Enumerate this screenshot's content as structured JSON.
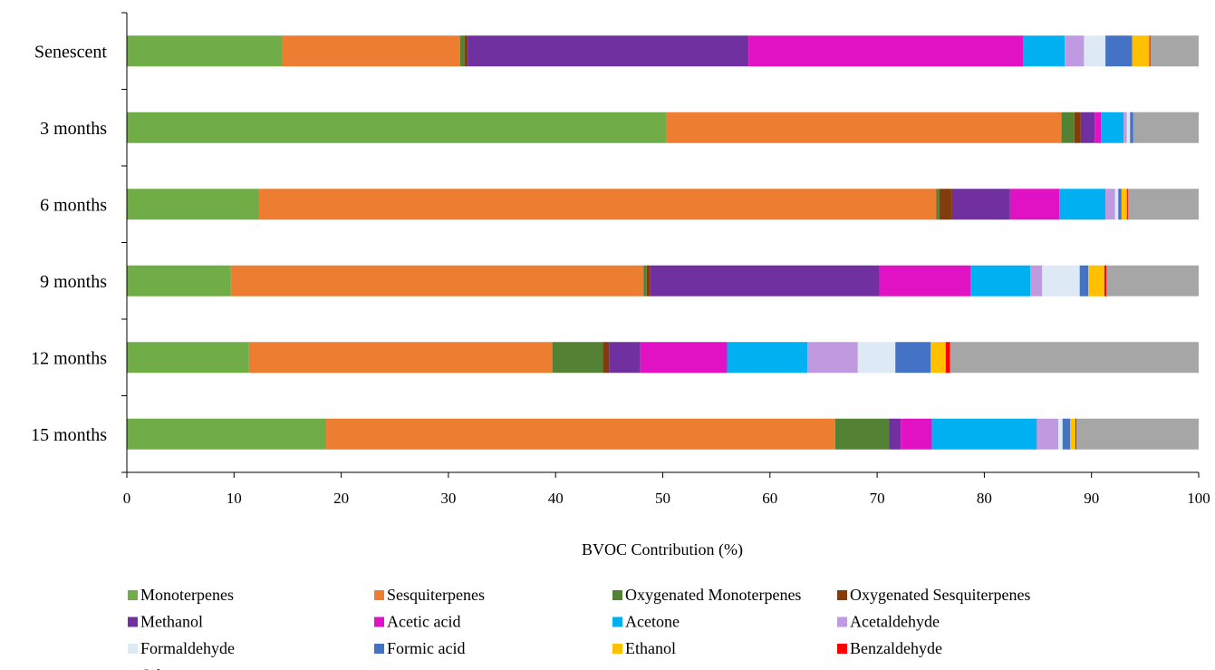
{
  "chart_data": {
    "type": "bar",
    "orientation": "horizontal",
    "stacked": true,
    "xlabel": "BVOC Contribution (%)",
    "xlim": [
      0,
      100
    ],
    "xticks": [
      "0",
      "10",
      "20",
      "30",
      "40",
      "50",
      "60",
      "70",
      "80",
      "90",
      "100"
    ],
    "grid": false,
    "legend_position": "bottom",
    "categories": [
      "Senescent",
      "3 months",
      "6 months",
      "9 months",
      "12 months",
      "15 months"
    ],
    "series": [
      {
        "name": "Monoterpenes",
        "color": "#70ad47",
        "values": [
          14.5,
          50.3,
          12.3,
          9.7,
          11.4,
          18.6
        ]
      },
      {
        "name": "Sesquiterpenes",
        "color": "#ed7d31",
        "values": [
          16.6,
          36.9,
          63.2,
          38.5,
          28.3,
          47.5
        ]
      },
      {
        "name": "Oxygenated Monoterpenes",
        "color": "#548235",
        "values": [
          0.4,
          1.2,
          0.3,
          0.3,
          4.7,
          5.0
        ]
      },
      {
        "name": "Oxygenated Sesquiterpenes",
        "color": "#843c0c",
        "values": [
          0.3,
          0.6,
          1.2,
          0.3,
          0.6,
          0.0
        ]
      },
      {
        "name": "Methanol",
        "color": "#7030a0",
        "values": [
          26.2,
          1.3,
          5.4,
          21.4,
          2.9,
          1.1
        ]
      },
      {
        "name": "Acetic acid",
        "color": "#e012c3",
        "values": [
          25.6,
          0.6,
          4.6,
          8.5,
          8.1,
          2.9
        ]
      },
      {
        "name": "Acetone",
        "color": "#00b0f0",
        "values": [
          3.9,
          2.1,
          4.3,
          5.6,
          7.5,
          9.8
        ]
      },
      {
        "name": "Acetaldehyde",
        "color": "#c09ae0",
        "values": [
          1.8,
          0.3,
          0.9,
          1.1,
          4.7,
          2.0
        ]
      },
      {
        "name": "Formaldehyde",
        "color": "#dde9f5",
        "values": [
          2.0,
          0.3,
          0.3,
          3.5,
          3.5,
          0.4
        ]
      },
      {
        "name": "Formic acid",
        "color": "#4472c4",
        "values": [
          2.5,
          0.3,
          0.3,
          0.8,
          3.3,
          0.7
        ]
      },
      {
        "name": "Ethanol",
        "color": "#ffc000",
        "values": [
          1.6,
          0.0,
          0.5,
          1.5,
          1.4,
          0.5
        ]
      },
      {
        "name": "Benzaldehyde",
        "color": "#ff0000",
        "values": [
          0.1,
          0.0,
          0.1,
          0.2,
          0.4,
          0.1
        ]
      },
      {
        "name": "Other",
        "color": "#a6a6a6",
        "values": [
          4.5,
          6.1,
          6.6,
          8.6,
          23.2,
          11.4
        ]
      }
    ]
  }
}
